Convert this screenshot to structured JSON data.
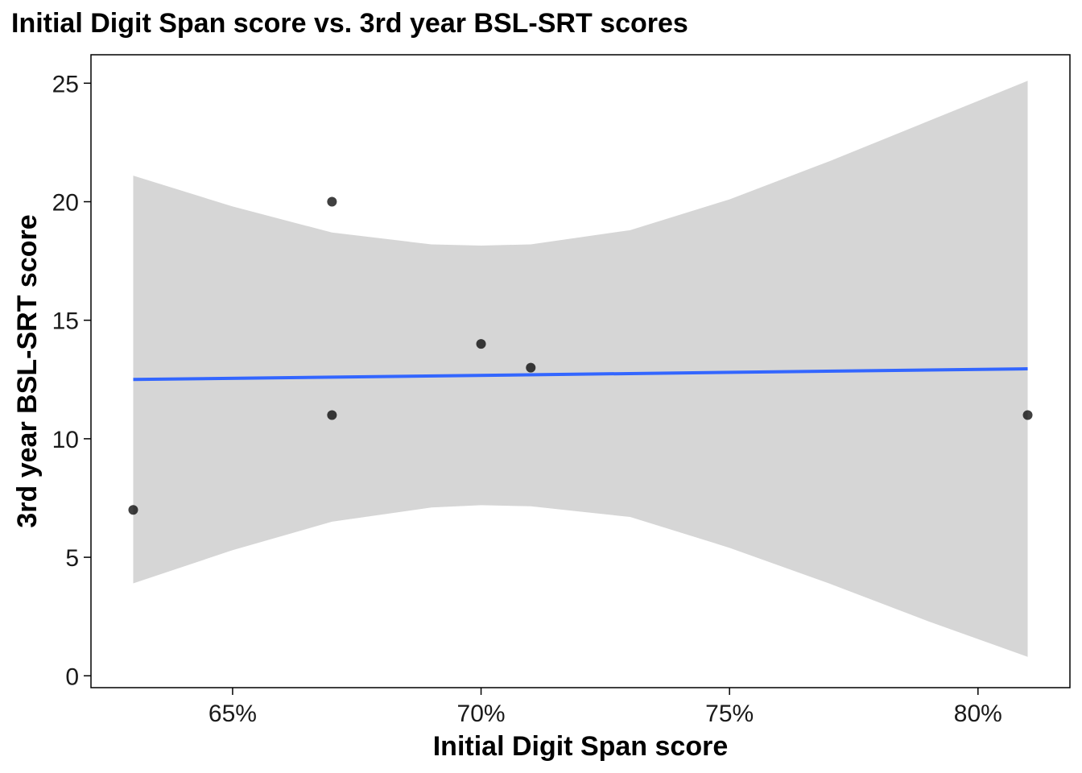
{
  "chart_data": {
    "type": "scatter",
    "title": "Initial Digit Span score vs. 3rd year BSL-SRT scores",
    "xlabel": "Initial Digit Span score",
    "ylabel": "3rd year BSL-SRT score",
    "xlim": [
      0.6215,
      0.8185
    ],
    "ylim": [
      -0.5,
      26.2
    ],
    "x_ticks": [
      0.65,
      0.7,
      0.75,
      0.8
    ],
    "x_tick_labels": [
      "65%",
      "70%",
      "75%",
      "80%"
    ],
    "y_ticks": [
      0,
      5,
      10,
      15,
      20,
      25
    ],
    "y_tick_labels": [
      "0",
      "5",
      "10",
      "15",
      "20",
      "25"
    ],
    "grid": false,
    "points": [
      {
        "x": 0.63,
        "y": 7
      },
      {
        "x": 0.67,
        "y": 20
      },
      {
        "x": 0.67,
        "y": 11
      },
      {
        "x": 0.7,
        "y": 14
      },
      {
        "x": 0.71,
        "y": 13
      },
      {
        "x": 0.81,
        "y": 11
      }
    ],
    "fit_line": {
      "x": [
        0.63,
        0.81
      ],
      "y": [
        12.5,
        12.95
      ]
    },
    "confidence_band": {
      "x": [
        0.63,
        0.65,
        0.67,
        0.69,
        0.7,
        0.71,
        0.73,
        0.75,
        0.77,
        0.79,
        0.81
      ],
      "upper": [
        21.1,
        19.8,
        18.7,
        18.2,
        18.15,
        18.2,
        18.8,
        20.1,
        21.7,
        23.4,
        25.1
      ],
      "lower": [
        3.9,
        5.3,
        6.5,
        7.1,
        7.2,
        7.15,
        6.7,
        5.4,
        3.9,
        2.3,
        0.8
      ]
    },
    "colors": {
      "points": "#000000",
      "fit_line": "#3366FF",
      "band": "#D6D6D6",
      "axis": "#000000",
      "text": "#1a1a1a"
    }
  }
}
